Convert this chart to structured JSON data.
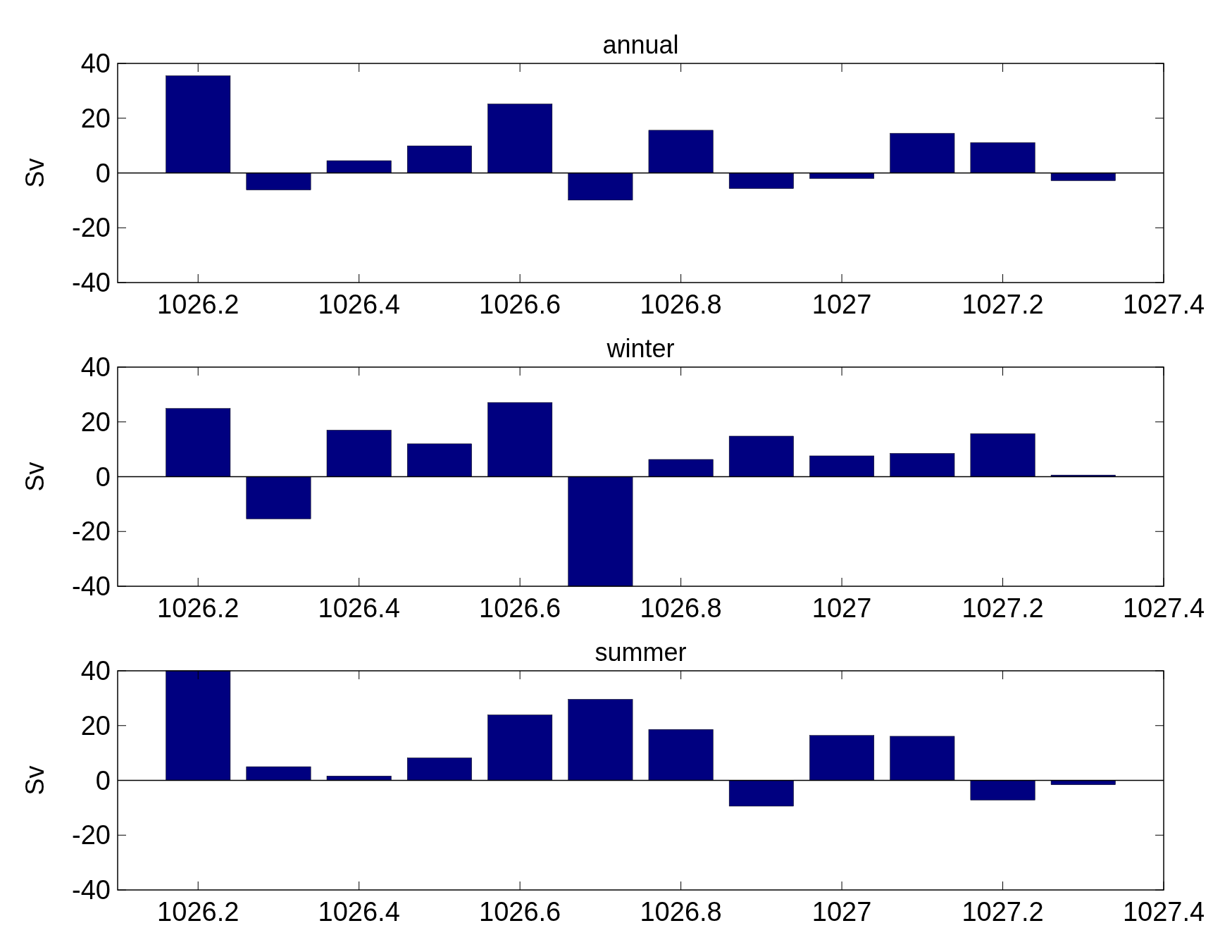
{
  "chart_data": [
    {
      "type": "bar",
      "title": "annual",
      "ylabel": "Sv",
      "x": [
        1026.2,
        1026.3,
        1026.4,
        1026.5,
        1026.6,
        1026.7,
        1026.8,
        1026.9,
        1027,
        1027.1,
        1027.2,
        1027.3
      ],
      "values": [
        35.5,
        -6.2,
        4.5,
        9.9,
        25.2,
        -9.9,
        15.6,
        -5.7,
        -2,
        14.5,
        11.1,
        -2.8
      ],
      "color": "#000080",
      "xlim": [
        1026.1,
        1027.4
      ],
      "ylim": [
        -40,
        40
      ],
      "xticks": [
        1026.2,
        1026.4,
        1026.6,
        1026.8,
        1027,
        1027.2,
        1027.4
      ],
      "yticks": [
        -40,
        -20,
        0,
        20,
        40
      ]
    },
    {
      "type": "bar",
      "title": "winter",
      "ylabel": "Sv",
      "x": [
        1026.2,
        1026.3,
        1026.4,
        1026.5,
        1026.6,
        1026.7,
        1026.8,
        1026.9,
        1027,
        1027.1,
        1027.2,
        1027.3
      ],
      "values": [
        24.9,
        -15.4,
        17,
        12,
        27.1,
        -40,
        6.3,
        14.8,
        7.6,
        8.5,
        15.7,
        0.6
      ],
      "color": "#000080",
      "xlim": [
        1026.1,
        1027.4
      ],
      "ylim": [
        -40,
        40
      ],
      "xticks": [
        1026.2,
        1026.4,
        1026.6,
        1026.8,
        1027,
        1027.2,
        1027.4
      ],
      "yticks": [
        -40,
        -20,
        0,
        20,
        40
      ]
    },
    {
      "type": "bar",
      "title": "summer",
      "ylabel": "Sv",
      "x": [
        1026.2,
        1026.3,
        1026.4,
        1026.5,
        1026.6,
        1026.7,
        1026.8,
        1026.9,
        1027,
        1027.1,
        1027.2,
        1027.3
      ],
      "values": [
        40,
        5,
        1.6,
        8.2,
        23.9,
        29.6,
        18.6,
        -9.4,
        16.4,
        16.1,
        -7.2,
        -1.6
      ],
      "color": "#000080",
      "xlim": [
        1026.1,
        1027.4
      ],
      "ylim": [
        -40,
        40
      ],
      "xticks": [
        1026.2,
        1026.4,
        1026.6,
        1026.8,
        1027,
        1027.2,
        1027.4
      ],
      "yticks": [
        -40,
        -20,
        0,
        20,
        40
      ]
    }
  ]
}
